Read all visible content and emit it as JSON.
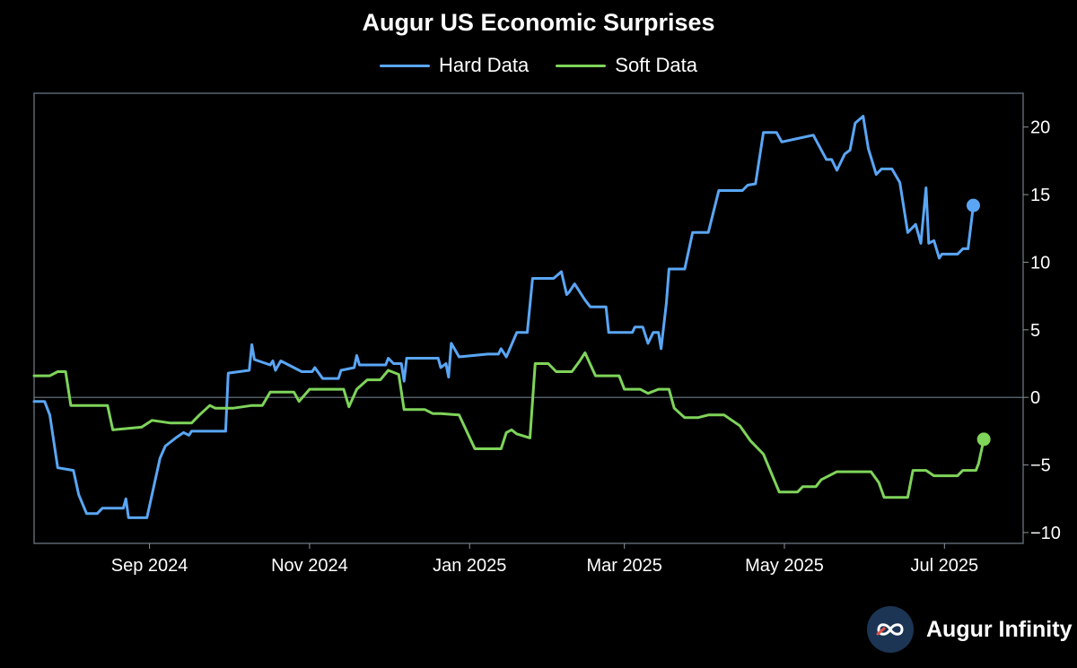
{
  "chart_data": {
    "type": "line",
    "title": "Augur US Economic Surprises",
    "xlabel": "",
    "ylabel": "",
    "x_range": [
      "2024-07-19",
      "2025-07-31"
    ],
    "ylim": [
      -10.8,
      22.5
    ],
    "y_ticks": [
      20,
      15,
      10,
      5,
      0,
      -5,
      -10
    ],
    "y_tick_labels": [
      "20",
      "15",
      "10",
      "5",
      "0",
      "−5",
      "−10"
    ],
    "x_ticks": [
      "2024-09-01",
      "2024-11-01",
      "2025-01-01",
      "2025-03-01",
      "2025-05-01",
      "2025-07-01"
    ],
    "x_tick_labels": [
      "Sep 2024",
      "Nov 2024",
      "Jan 2025",
      "Mar 2025",
      "May 2025",
      "Jul 2025"
    ],
    "zero_line": true,
    "legend_position": "top-center",
    "series": [
      {
        "name": "Hard Data",
        "color": "#5aa6f5",
        "last_value": 14.2,
        "points": [
          [
            "2024-07-19",
            -0.3
          ],
          [
            "2024-07-23",
            -0.3
          ],
          [
            "2024-07-25",
            -1.3
          ],
          [
            "2024-07-28",
            -5.2
          ],
          [
            "2024-08-03",
            -5.4
          ],
          [
            "2024-08-05",
            -7.2
          ],
          [
            "2024-08-08",
            -8.6
          ],
          [
            "2024-08-12",
            -8.6
          ],
          [
            "2024-08-14",
            -8.2
          ],
          [
            "2024-08-22",
            -8.2
          ],
          [
            "2024-08-23",
            -7.5
          ],
          [
            "2024-08-24",
            -8.9
          ],
          [
            "2024-08-31",
            -8.9
          ],
          [
            "2024-09-05",
            -4.5
          ],
          [
            "2024-09-07",
            -3.6
          ],
          [
            "2024-09-11",
            -3.0
          ],
          [
            "2024-09-14",
            -2.6
          ],
          [
            "2024-09-16",
            -2.8
          ],
          [
            "2024-09-17",
            -2.5
          ],
          [
            "2024-09-30",
            -2.5
          ],
          [
            "2024-10-01",
            1.8
          ],
          [
            "2024-10-09",
            2.0
          ],
          [
            "2024-10-10",
            3.9
          ],
          [
            "2024-10-11",
            2.8
          ],
          [
            "2024-10-17",
            2.4
          ],
          [
            "2024-10-18",
            2.7
          ],
          [
            "2024-10-19",
            2.0
          ],
          [
            "2024-10-21",
            2.7
          ],
          [
            "2024-10-29",
            1.9
          ],
          [
            "2024-11-02",
            1.9
          ],
          [
            "2024-11-03",
            2.2
          ],
          [
            "2024-11-06",
            1.4
          ],
          [
            "2024-11-12",
            1.4
          ],
          [
            "2024-11-13",
            2.0
          ],
          [
            "2024-11-18",
            2.2
          ],
          [
            "2024-11-19",
            3.1
          ],
          [
            "2024-11-20",
            2.4
          ],
          [
            "2024-11-30",
            2.4
          ],
          [
            "2024-12-01",
            2.9
          ],
          [
            "2024-12-03",
            2.5
          ],
          [
            "2024-12-06",
            2.5
          ],
          [
            "2024-12-07",
            1.2
          ],
          [
            "2024-12-08",
            2.9
          ],
          [
            "2024-12-20",
            2.9
          ],
          [
            "2024-12-21",
            2.2
          ],
          [
            "2024-12-23",
            2.5
          ],
          [
            "2024-12-24",
            1.5
          ],
          [
            "2024-12-25",
            4.0
          ],
          [
            "2024-12-28",
            3.0
          ],
          [
            "2025-01-08",
            3.2
          ],
          [
            "2025-01-12",
            3.2
          ],
          [
            "2025-01-13",
            3.6
          ],
          [
            "2025-01-15",
            3.0
          ],
          [
            "2025-01-19",
            4.8
          ],
          [
            "2025-01-23",
            4.8
          ],
          [
            "2025-01-25",
            8.8
          ],
          [
            "2025-02-02",
            8.8
          ],
          [
            "2025-02-05",
            9.3
          ],
          [
            "2025-02-07",
            7.6
          ],
          [
            "2025-02-08",
            7.8
          ],
          [
            "2025-02-10",
            8.4
          ],
          [
            "2025-02-14",
            7.2
          ],
          [
            "2025-02-16",
            6.7
          ],
          [
            "2025-02-22",
            6.7
          ],
          [
            "2025-02-23",
            4.8
          ],
          [
            "2025-03-04",
            4.8
          ],
          [
            "2025-03-05",
            5.2
          ],
          [
            "2025-03-08",
            5.2
          ],
          [
            "2025-03-10",
            4.0
          ],
          [
            "2025-03-12",
            4.8
          ],
          [
            "2025-03-14",
            4.8
          ],
          [
            "2025-03-15",
            3.6
          ],
          [
            "2025-03-17",
            7.0
          ],
          [
            "2025-03-18",
            9.5
          ],
          [
            "2025-03-24",
            9.5
          ],
          [
            "2025-03-27",
            12.2
          ],
          [
            "2025-04-02",
            12.2
          ],
          [
            "2025-04-06",
            15.3
          ],
          [
            "2025-04-15",
            15.3
          ],
          [
            "2025-04-17",
            15.7
          ],
          [
            "2025-04-20",
            15.8
          ],
          [
            "2025-04-23",
            19.6
          ],
          [
            "2025-04-28",
            19.6
          ],
          [
            "2025-04-30",
            18.9
          ],
          [
            "2025-05-12",
            19.4
          ],
          [
            "2025-05-17",
            17.6
          ],
          [
            "2025-05-19",
            17.6
          ],
          [
            "2025-05-21",
            16.8
          ],
          [
            "2025-05-24",
            18.0
          ],
          [
            "2025-05-26",
            18.3
          ],
          [
            "2025-05-28",
            20.3
          ],
          [
            "2025-05-31",
            20.8
          ],
          [
            "2025-06-02",
            18.4
          ],
          [
            "2025-06-05",
            16.5
          ],
          [
            "2025-06-07",
            16.9
          ],
          [
            "2025-06-11",
            16.9
          ],
          [
            "2025-06-14",
            15.9
          ],
          [
            "2025-06-17",
            12.2
          ],
          [
            "2025-06-20",
            12.8
          ],
          [
            "2025-06-22",
            11.4
          ],
          [
            "2025-06-24",
            15.5
          ],
          [
            "2025-06-25",
            11.4
          ],
          [
            "2025-06-27",
            11.6
          ],
          [
            "2025-06-29",
            10.3
          ],
          [
            "2025-06-30",
            10.6
          ],
          [
            "2025-07-06",
            10.6
          ],
          [
            "2025-07-08",
            11.0
          ],
          [
            "2025-07-10",
            11.0
          ],
          [
            "2025-07-12",
            14.2
          ]
        ]
      },
      {
        "name": "Soft Data",
        "color": "#7fd45a",
        "last_value": -3.1,
        "points": [
          [
            "2024-07-19",
            1.6
          ],
          [
            "2024-07-25",
            1.6
          ],
          [
            "2024-07-28",
            1.9
          ],
          [
            "2024-07-31",
            1.9
          ],
          [
            "2024-08-02",
            -0.6
          ],
          [
            "2024-08-16",
            -0.6
          ],
          [
            "2024-08-18",
            -2.4
          ],
          [
            "2024-08-29",
            -2.2
          ],
          [
            "2024-09-02",
            -1.7
          ],
          [
            "2024-09-09",
            -1.9
          ],
          [
            "2024-09-17",
            -1.9
          ],
          [
            "2024-09-20",
            -1.3
          ],
          [
            "2024-09-24",
            -0.6
          ],
          [
            "2024-09-26",
            -0.8
          ],
          [
            "2024-10-03",
            -0.8
          ],
          [
            "2024-10-10",
            -0.6
          ],
          [
            "2024-10-14",
            -0.6
          ],
          [
            "2024-10-17",
            0.4
          ],
          [
            "2024-10-26",
            0.4
          ],
          [
            "2024-10-28",
            -0.3
          ],
          [
            "2024-11-01",
            0.6
          ],
          [
            "2024-11-14",
            0.6
          ],
          [
            "2024-11-16",
            -0.7
          ],
          [
            "2024-11-19",
            0.6
          ],
          [
            "2024-11-23",
            1.3
          ],
          [
            "2024-11-28",
            1.3
          ],
          [
            "2024-12-01",
            2.0
          ],
          [
            "2024-12-05",
            1.7
          ],
          [
            "2024-12-07",
            -0.9
          ],
          [
            "2024-12-15",
            -0.9
          ],
          [
            "2024-12-18",
            -1.2
          ],
          [
            "2024-12-21",
            -1.2
          ],
          [
            "2024-12-28",
            -1.3
          ],
          [
            "2025-01-03",
            -3.8
          ],
          [
            "2025-01-13",
            -3.8
          ],
          [
            "2025-01-15",
            -2.6
          ],
          [
            "2025-01-17",
            -2.4
          ],
          [
            "2025-01-19",
            -2.7
          ],
          [
            "2025-01-24",
            -3.0
          ],
          [
            "2025-01-26",
            2.5
          ],
          [
            "2025-01-31",
            2.5
          ],
          [
            "2025-02-03",
            1.9
          ],
          [
            "2025-02-09",
            1.9
          ],
          [
            "2025-02-12",
            2.7
          ],
          [
            "2025-02-14",
            3.3
          ],
          [
            "2025-02-18",
            1.6
          ],
          [
            "2025-02-27",
            1.6
          ],
          [
            "2025-03-01",
            0.6
          ],
          [
            "2025-03-07",
            0.6
          ],
          [
            "2025-03-10",
            0.3
          ],
          [
            "2025-03-14",
            0.6
          ],
          [
            "2025-03-18",
            0.6
          ],
          [
            "2025-03-20",
            -0.8
          ],
          [
            "2025-03-24",
            -1.5
          ],
          [
            "2025-03-29",
            -1.5
          ],
          [
            "2025-04-02",
            -1.3
          ],
          [
            "2025-04-08",
            -1.3
          ],
          [
            "2025-04-14",
            -2.1
          ],
          [
            "2025-04-18",
            -3.2
          ],
          [
            "2025-04-23",
            -4.2
          ],
          [
            "2025-04-29",
            -7.0
          ],
          [
            "2025-05-06",
            -7.0
          ],
          [
            "2025-05-08",
            -6.6
          ],
          [
            "2025-05-13",
            -6.6
          ],
          [
            "2025-05-15",
            -6.1
          ],
          [
            "2025-05-21",
            -5.5
          ],
          [
            "2025-06-03",
            -5.5
          ],
          [
            "2025-06-06",
            -6.3
          ],
          [
            "2025-06-08",
            -7.4
          ],
          [
            "2025-06-17",
            -7.4
          ],
          [
            "2025-06-19",
            -5.4
          ],
          [
            "2025-06-24",
            -5.4
          ],
          [
            "2025-06-27",
            -5.8
          ],
          [
            "2025-07-06",
            -5.8
          ],
          [
            "2025-07-08",
            -5.4
          ],
          [
            "2025-07-13",
            -5.4
          ],
          [
            "2025-07-14",
            -4.9
          ],
          [
            "2025-07-16",
            -3.1
          ]
        ]
      }
    ]
  },
  "brand": {
    "name": "Augur Infinity",
    "logo_icon": "infinity-icon"
  }
}
